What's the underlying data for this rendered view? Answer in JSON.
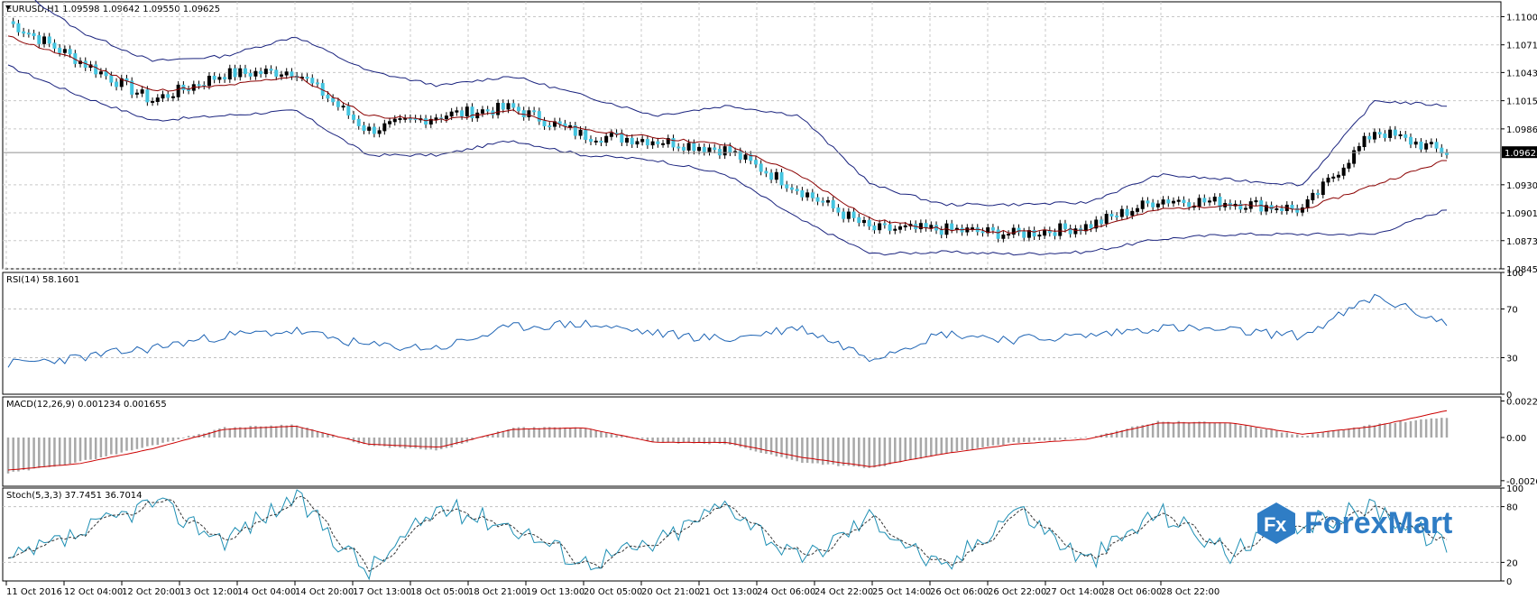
{
  "logo": {
    "text": "ForexMart"
  },
  "time_labels": [
    "11 Oct 2016",
    "12 Oct 04:00",
    "12 Oct 20:00",
    "13 Oct 12:00",
    "14 Oct 04:00",
    "14 Oct 20:00",
    "17 Oct 13:00",
    "18 Oct 05:00",
    "18 Oct 21:00",
    "19 Oct 13:00",
    "20 Oct 05:00",
    "20 Oct 21:00",
    "21 Oct 13:00",
    "24 Oct 06:00",
    "24 Oct 22:00",
    "25 Oct 14:00",
    "26 Oct 06:00",
    "26 Oct 22:00",
    "27 Oct 14:00",
    "28 Oct 06:00",
    "28 Oct 22:00"
  ],
  "chart_data": [
    {
      "type": "line",
      "title": "EURUSD,H1  1.09598 1.09642 1.09550 1.09625",
      "symbol": "EURUSD,H1",
      "ohlc_last": {
        "open": 1.09598,
        "high": 1.09642,
        "low": 1.0955,
        "close": 1.09625
      },
      "ylim": [
        1.0845,
        1.1115
      ],
      "y_ticks": [
        "1.11000",
        "1.10715",
        "1.10435",
        "1.10150",
        "1.09865",
        "1.09300",
        "1.09015",
        "1.08735",
        "1.08450"
      ],
      "current_price_label": "1.09625",
      "current_price": 1.09625,
      "x": [
        "11 Oct 2016",
        "12 Oct 04:00",
        "12 Oct 20:00",
        "13 Oct 12:00",
        "14 Oct 04:00",
        "14 Oct 20:00",
        "17 Oct 13:00",
        "18 Oct 05:00",
        "18 Oct 21:00",
        "19 Oct 13:00",
        "20 Oct 05:00",
        "20 Oct 21:00",
        "21 Oct 13:00",
        "24 Oct 06:00",
        "24 Oct 22:00",
        "25 Oct 14:00",
        "26 Oct 06:00",
        "26 Oct 22:00",
        "27 Oct 14:00",
        "28 Oct 06:00",
        "28 Oct 22:00"
      ],
      "series": [
        {
          "name": "close",
          "values": [
            1.1095,
            1.1055,
            1.1015,
            1.1042,
            1.1045,
            1.0985,
            1.1,
            1.1008,
            1.098,
            1.0975,
            1.0965,
            1.0925,
            1.0885,
            1.0885,
            1.088,
            1.0888,
            1.0915,
            1.0912,
            1.0905,
            1.0985,
            1.09625
          ]
        },
        {
          "name": "ma",
          "values": [
            1.108,
            1.1055,
            1.1025,
            1.103,
            1.104,
            1.1,
            1.0995,
            1.1005,
            1.0985,
            1.0978,
            1.097,
            1.094,
            1.0895,
            1.0885,
            1.0882,
            1.0885,
            1.0905,
            1.091,
            1.0905,
            1.093,
            1.0955
          ]
        },
        {
          "name": "bb_upper",
          "values": [
            1.1135,
            1.1085,
            1.1055,
            1.106,
            1.108,
            1.1045,
            1.103,
            1.104,
            1.102,
            1.1,
            1.101,
            1.1,
            1.093,
            1.091,
            1.091,
            1.0912,
            1.094,
            1.0935,
            1.093,
            1.1015,
            1.101
          ]
        },
        {
          "name": "bb_lower",
          "values": [
            1.105,
            1.102,
            1.0995,
            1.1,
            1.1005,
            1.096,
            1.096,
            1.0975,
            1.096,
            1.0955,
            1.094,
            1.0895,
            1.086,
            1.0862,
            1.086,
            1.0862,
            1.0875,
            1.088,
            1.088,
            1.088,
            1.0905
          ]
        }
      ]
    },
    {
      "type": "line",
      "title": "RSI(14) 58.1601",
      "ylim": [
        0,
        100
      ],
      "y_ticks": [
        "100",
        "70",
        "30",
        "0"
      ],
      "series": [
        {
          "name": "RSI(14)",
          "values": [
            25,
            30,
            38,
            48,
            52,
            40,
            38,
            55,
            58,
            50,
            45,
            55,
            30,
            50,
            45,
            48,
            55,
            52,
            48,
            80,
            58.16
          ]
        }
      ]
    },
    {
      "type": "bar",
      "title": "MACD(12,26,9) 0.001234 0.001655",
      "ylim": [
        -0.003,
        0.0025
      ],
      "y_ticks": [
        "0.00225",
        "0.00",
        "-0.002659"
      ],
      "series": [
        {
          "name": "histogram",
          "values": [
            -0.0022,
            -0.0015,
            -0.0005,
            0.0006,
            0.0008,
            -0.0005,
            -0.0008,
            0.0006,
            0.0006,
            -0.0003,
            -0.0004,
            -0.0015,
            -0.0019,
            -0.001,
            -0.0003,
            0.0,
            0.001,
            0.0009,
            0.0001,
            0.0008,
            0.00123
          ]
        },
        {
          "name": "signal",
          "values": [
            -0.002,
            -0.0016,
            -0.0007,
            0.0005,
            0.0007,
            -0.0004,
            -0.0006,
            0.0005,
            0.0006,
            -0.0003,
            -0.0003,
            -0.0012,
            -0.0018,
            -0.001,
            -0.0004,
            -0.0001,
            0.0009,
            0.0009,
            0.0002,
            0.0007,
            0.001655
          ]
        }
      ]
    },
    {
      "type": "line",
      "title": "Stoch(5,3,3) 37.7451 36.7014",
      "ylim": [
        0,
        100
      ],
      "y_ticks": [
        "100",
        "80",
        "20",
        "0"
      ],
      "series": [
        {
          "name": "main",
          "values": [
            20,
            50,
            85,
            45,
            90,
            10,
            80,
            60,
            20,
            40,
            85,
            20,
            70,
            10,
            80,
            20,
            75,
            30,
            60,
            80,
            37.75
          ]
        },
        {
          "name": "signal",
          "values": [
            18,
            45,
            80,
            50,
            85,
            15,
            75,
            62,
            25,
            38,
            80,
            25,
            65,
            15,
            75,
            25,
            70,
            35,
            58,
            78,
            36.7
          ]
        }
      ]
    }
  ]
}
